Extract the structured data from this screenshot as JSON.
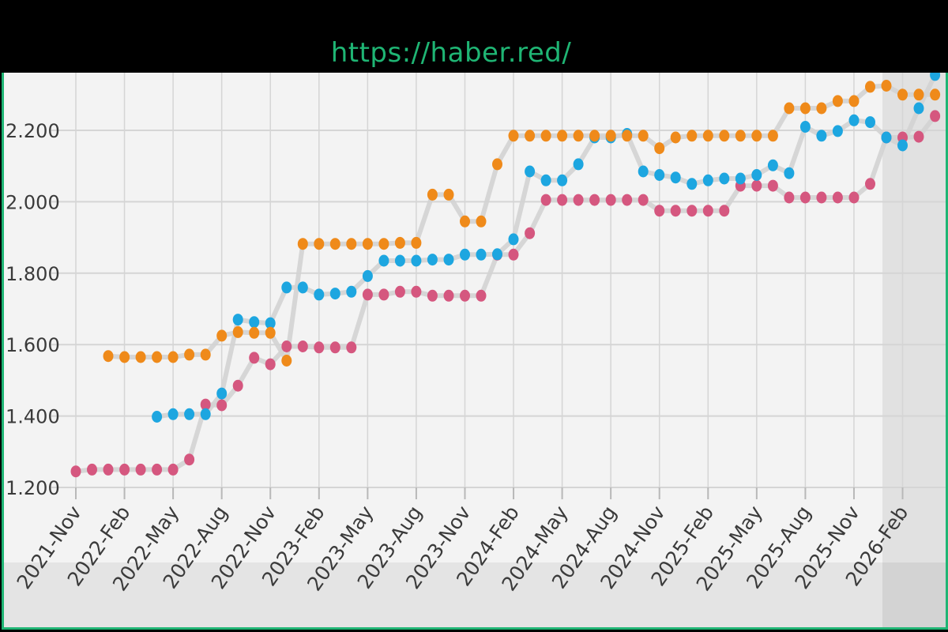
{
  "banner": {
    "url": "https://haber.red/"
  },
  "colors": {
    "background": "#000000",
    "frame_border": "#1fb574",
    "banner_text": "#1fb574",
    "plot_background": "#f3f3f3",
    "grid": "#d5d5d5",
    "track_line": "#d3d3d3"
  },
  "chart_data": {
    "type": "scatter",
    "title": "",
    "xlabel": "",
    "ylabel": "",
    "ylim": [
      1150,
      2350
    ],
    "grid": true,
    "legend": "none",
    "y_ticks": [
      "1.200",
      "1.400",
      "1.600",
      "1.800",
      "2.000",
      "2.200"
    ],
    "y_tick_values": [
      1200,
      1400,
      1600,
      1800,
      2000,
      2200
    ],
    "x_ticks": [
      "2021-Nov",
      "2022-Feb",
      "2022-May",
      "2022-Aug",
      "2022-Nov",
      "2023-Feb",
      "2023-May",
      "2023-Aug",
      "2023-Nov",
      "2024-Feb",
      "2024-May",
      "2024-Aug",
      "2024-Nov",
      "2025-Feb",
      "2025-May",
      "2025-Aug",
      "2025-Nov",
      "2026-Feb"
    ],
    "x_tick_values": [
      "2021-11",
      "2022-02",
      "2022-05",
      "2022-08",
      "2022-11",
      "2023-02",
      "2023-05",
      "2023-08",
      "2023-11",
      "2024-02",
      "2024-05",
      "2024-08",
      "2024-11",
      "2025-02",
      "2025-05",
      "2025-08",
      "2025-11",
      "2026-02"
    ],
    "series": [
      {
        "color": "#d5577f",
        "points": [
          [
            "2021-11-01",
            1245
          ],
          [
            "2021-12-01",
            1250
          ],
          [
            "2022-01-01",
            1250
          ],
          [
            "2022-02-01",
            1250
          ],
          [
            "2022-03-01",
            1250
          ],
          [
            "2022-04-01",
            1250
          ],
          [
            "2022-05-01",
            1250
          ],
          [
            "2022-06-01",
            1278
          ],
          [
            "2022-07-01",
            1432
          ],
          [
            "2022-08-01",
            1430
          ],
          [
            "2022-09-01",
            1485
          ],
          [
            "2022-10-01",
            1563
          ],
          [
            "2022-11-01",
            1545
          ],
          [
            "2022-12-01",
            1595
          ],
          [
            "2023-01-01",
            1595
          ],
          [
            "2023-02-01",
            1592
          ],
          [
            "2023-03-01",
            1592
          ],
          [
            "2023-04-01",
            1592
          ],
          [
            "2023-05-01",
            1740
          ],
          [
            "2023-06-01",
            1740
          ],
          [
            "2023-07-01",
            1748
          ],
          [
            "2023-08-01",
            1748
          ],
          [
            "2023-09-01",
            1737
          ],
          [
            "2023-10-01",
            1737
          ],
          [
            "2023-11-01",
            1737
          ],
          [
            "2023-12-01",
            1737
          ],
          [
            "2024-01-01",
            1852
          ],
          [
            "2024-02-01",
            1852
          ],
          [
            "2024-03-01",
            1912
          ],
          [
            "2024-04-01",
            2005
          ],
          [
            "2024-05-01",
            2005
          ],
          [
            "2024-06-01",
            2005
          ],
          [
            "2024-07-01",
            2005
          ],
          [
            "2024-08-01",
            2005
          ],
          [
            "2024-09-01",
            2005
          ],
          [
            "2024-10-01",
            2005
          ],
          [
            "2024-11-01",
            1975
          ],
          [
            "2024-12-01",
            1975
          ],
          [
            "2025-01-01",
            1975
          ],
          [
            "2025-02-01",
            1975
          ],
          [
            "2025-03-01",
            1975
          ],
          [
            "2025-04-01",
            2045
          ],
          [
            "2025-05-01",
            2045
          ],
          [
            "2025-06-01",
            2045
          ],
          [
            "2025-07-01",
            2012
          ],
          [
            "2025-08-01",
            2012
          ],
          [
            "2025-09-01",
            2012
          ],
          [
            "2025-10-01",
            2012
          ],
          [
            "2025-11-01",
            2012
          ],
          [
            "2025-12-01",
            2050
          ],
          [
            "2026-01-01",
            2180
          ],
          [
            "2026-02-01",
            2180
          ],
          [
            "2026-03-01",
            2182
          ],
          [
            "2026-04-01",
            2240
          ]
        ]
      },
      {
        "color": "#1da6e0",
        "points": [
          [
            "2022-04-01",
            1398
          ],
          [
            "2022-05-01",
            1405
          ],
          [
            "2022-06-01",
            1405
          ],
          [
            "2022-07-01",
            1405
          ],
          [
            "2022-08-01",
            1463
          ],
          [
            "2022-09-01",
            1670
          ],
          [
            "2022-10-01",
            1663
          ],
          [
            "2022-11-01",
            1660
          ],
          [
            "2022-12-01",
            1760
          ],
          [
            "2023-01-01",
            1760
          ],
          [
            "2023-02-01",
            1740
          ],
          [
            "2023-03-01",
            1743
          ],
          [
            "2023-04-01",
            1748
          ],
          [
            "2023-05-01",
            1792
          ],
          [
            "2023-06-01",
            1835
          ],
          [
            "2023-07-01",
            1835
          ],
          [
            "2023-08-01",
            1835
          ],
          [
            "2023-09-01",
            1838
          ],
          [
            "2023-10-01",
            1838
          ],
          [
            "2023-11-01",
            1852
          ],
          [
            "2023-12-01",
            1852
          ],
          [
            "2024-01-01",
            1853
          ],
          [
            "2024-02-01",
            1895
          ],
          [
            "2024-03-01",
            2085
          ],
          [
            "2024-04-01",
            2060
          ],
          [
            "2024-05-01",
            2060
          ],
          [
            "2024-06-01",
            2105
          ],
          [
            "2024-07-01",
            2180
          ],
          [
            "2024-08-01",
            2180
          ],
          [
            "2024-09-01",
            2190
          ],
          [
            "2024-10-01",
            2085
          ],
          [
            "2024-11-01",
            2075
          ],
          [
            "2024-12-01",
            2068
          ],
          [
            "2025-01-01",
            2050
          ],
          [
            "2025-02-01",
            2060
          ],
          [
            "2025-03-01",
            2065
          ],
          [
            "2025-04-01",
            2065
          ],
          [
            "2025-05-01",
            2075
          ],
          [
            "2025-06-01",
            2102
          ],
          [
            "2025-07-01",
            2080
          ],
          [
            "2025-08-01",
            2210
          ],
          [
            "2025-09-01",
            2185
          ],
          [
            "2025-10-01",
            2198
          ],
          [
            "2025-11-01",
            2228
          ],
          [
            "2025-12-01",
            2223
          ],
          [
            "2026-01-01",
            2180
          ],
          [
            "2026-02-01",
            2158
          ],
          [
            "2026-03-01",
            2262
          ],
          [
            "2026-04-01",
            2355
          ]
        ]
      },
      {
        "color": "#ef8a1a",
        "points": [
          [
            "2022-01-01",
            1568
          ],
          [
            "2022-02-01",
            1565
          ],
          [
            "2022-03-01",
            1565
          ],
          [
            "2022-04-01",
            1565
          ],
          [
            "2022-05-01",
            1565
          ],
          [
            "2022-06-01",
            1572
          ],
          [
            "2022-07-01",
            1572
          ],
          [
            "2022-08-01",
            1625
          ],
          [
            "2022-09-01",
            1635
          ],
          [
            "2022-10-01",
            1633
          ],
          [
            "2022-11-01",
            1633
          ],
          [
            "2022-12-01",
            1555
          ],
          [
            "2023-01-01",
            1882
          ],
          [
            "2023-02-01",
            1882
          ],
          [
            "2023-03-01",
            1882
          ],
          [
            "2023-04-01",
            1882
          ],
          [
            "2023-05-01",
            1882
          ],
          [
            "2023-06-01",
            1882
          ],
          [
            "2023-07-01",
            1885
          ],
          [
            "2023-08-01",
            1885
          ],
          [
            "2023-09-01",
            2020
          ],
          [
            "2023-10-01",
            2020
          ],
          [
            "2023-11-01",
            1945
          ],
          [
            "2023-12-01",
            1945
          ],
          [
            "2024-01-01",
            2105
          ],
          [
            "2024-02-01",
            2185
          ],
          [
            "2024-03-01",
            2185
          ],
          [
            "2024-04-01",
            2185
          ],
          [
            "2024-05-01",
            2185
          ],
          [
            "2024-06-01",
            2185
          ],
          [
            "2024-07-01",
            2185
          ],
          [
            "2024-08-01",
            2185
          ],
          [
            "2024-09-01",
            2185
          ],
          [
            "2024-10-01",
            2185
          ],
          [
            "2024-11-01",
            2150
          ],
          [
            "2024-12-01",
            2180
          ],
          [
            "2025-01-01",
            2185
          ],
          [
            "2025-02-01",
            2185
          ],
          [
            "2025-03-01",
            2185
          ],
          [
            "2025-04-01",
            2185
          ],
          [
            "2025-05-01",
            2185
          ],
          [
            "2025-06-01",
            2185
          ],
          [
            "2025-07-01",
            2262
          ],
          [
            "2025-08-01",
            2262
          ],
          [
            "2025-09-01",
            2262
          ],
          [
            "2025-10-01",
            2282
          ],
          [
            "2025-11-01",
            2282
          ],
          [
            "2025-12-01",
            2322
          ],
          [
            "2026-01-01",
            2325
          ],
          [
            "2026-02-01",
            2300
          ],
          [
            "2026-03-01",
            2300
          ],
          [
            "2026-04-01",
            2300
          ]
        ]
      }
    ]
  }
}
